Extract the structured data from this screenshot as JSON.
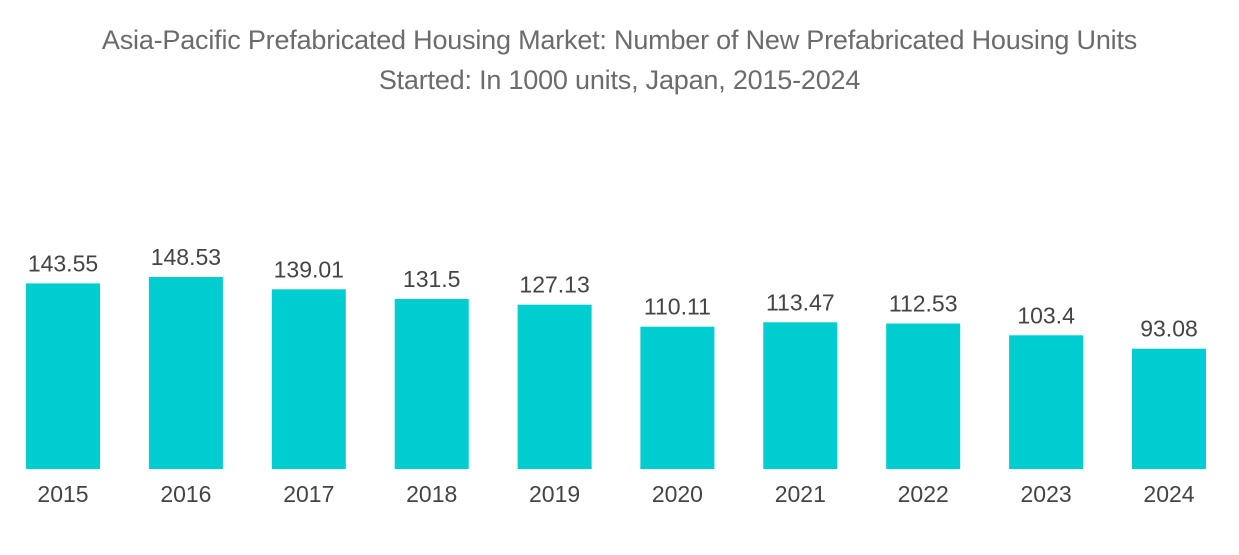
{
  "chart_data": {
    "type": "bar",
    "title_line1": "Asia-Pacific Prefabricated Housing Market: Number of New Prefabricated Housing Units",
    "title_line2": "Started: In 1000 units, Japan, 2015-2024",
    "categories": [
      "2015",
      "2016",
      "2017",
      "2018",
      "2019",
      "2020",
      "2021",
      "2022",
      "2023",
      "2024"
    ],
    "values": [
      143.55,
      148.53,
      139.01,
      131.5,
      127.13,
      110.11,
      113.47,
      112.53,
      103.4,
      93.08
    ],
    "value_labels": [
      "143.55",
      "148.53",
      "139.01",
      "131.5",
      "127.13",
      "110.11",
      "113.47",
      "112.53",
      "103.4",
      "93.08"
    ],
    "xlabel": "",
    "ylabel": "",
    "ylim": [
      0,
      148.53
    ],
    "grid": false,
    "legend": "none",
    "bar_color": "#00cdd0"
  }
}
